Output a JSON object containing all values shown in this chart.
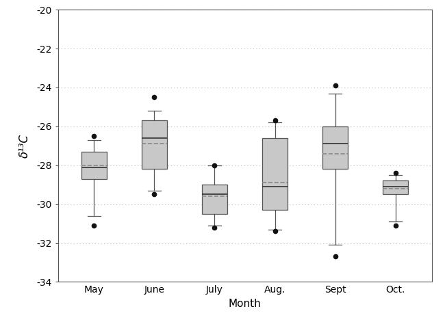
{
  "months": [
    "May",
    "June",
    "July",
    "Aug.",
    "Sept",
    "Oct."
  ],
  "boxes": [
    {
      "whislo": -30.6,
      "q1": -28.7,
      "med": -28.1,
      "mean": -28.0,
      "q3": -27.3,
      "whishi": -26.7,
      "fliers": [
        -31.1,
        -26.5
      ]
    },
    {
      "whislo": -29.3,
      "q1": -28.2,
      "med": -26.6,
      "mean": -26.9,
      "q3": -25.7,
      "whishi": -25.2,
      "fliers": [
        -29.5,
        -24.5
      ]
    },
    {
      "whislo": -31.1,
      "q1": -30.5,
      "med": -29.5,
      "mean": -29.6,
      "q3": -29.0,
      "whishi": -28.0,
      "fliers": [
        -31.2,
        -28.0
      ]
    },
    {
      "whislo": -31.3,
      "q1": -30.3,
      "med": -29.1,
      "mean": -28.9,
      "q3": -26.6,
      "whishi": -25.8,
      "fliers": [
        -31.4,
        -25.7
      ]
    },
    {
      "whislo": -32.1,
      "q1": -28.2,
      "med": -26.9,
      "mean": -27.4,
      "q3": -26.0,
      "whishi": -24.3,
      "fliers": [
        -32.7,
        -23.9
      ]
    },
    {
      "whislo": -30.9,
      "q1": -29.5,
      "med": -29.1,
      "mean": -29.2,
      "q3": -28.8,
      "whishi": -28.5,
      "fliers": [
        -31.1,
        -28.4
      ]
    }
  ],
  "ylabel": "δ¹³C",
  "xlabel": "Month",
  "ylim": [
    -34,
    -20
  ],
  "yticks": [
    -34,
    -32,
    -30,
    -28,
    -26,
    -24,
    -22,
    -20
  ],
  "box_color": "#c8c8c8",
  "box_edge_color": "#555555",
  "whisker_color": "#555555",
  "median_color": "#333333",
  "mean_color": "#888888",
  "flier_color": "#111111",
  "grid_color": "#bbbbbb",
  "background_color": "#ffffff"
}
